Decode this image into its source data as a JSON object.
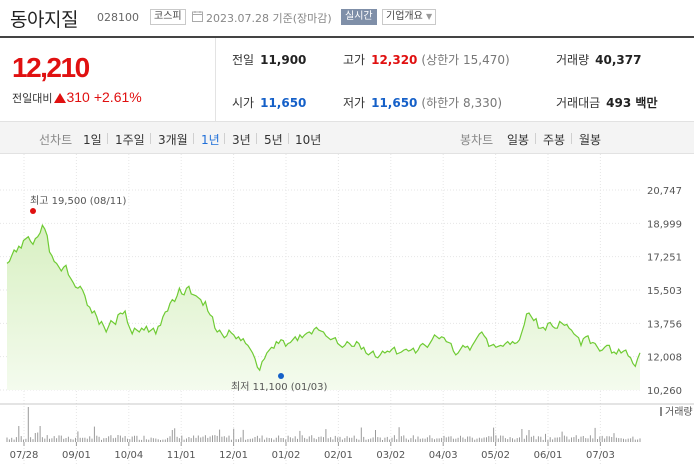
{
  "header": {
    "name": "동아지질",
    "code": "028100",
    "market": "코스피",
    "date": "2023.07.28  기준(장마감)",
    "realtime": "실시간",
    "overview": "기업개요"
  },
  "price": {
    "current": "12,210",
    "change_label": "전일대비",
    "change": "310",
    "change_pct": "+2.61%"
  },
  "stats": {
    "prev_close": {
      "label": "전일",
      "value": "11,900"
    },
    "high": {
      "label": "고가",
      "value": "12,320",
      "sub": "(상한가 15,470)"
    },
    "volume": {
      "label": "거래량",
      "value": "40,377"
    },
    "open": {
      "label": "시가",
      "value": "11,650"
    },
    "low": {
      "label": "저가",
      "value": "11,650",
      "sub": "(하한가 8,330)"
    },
    "amount": {
      "label": "거래대금",
      "value": "493 백만"
    }
  },
  "periods": {
    "line_label": "선차트",
    "line_items": [
      "1일",
      "1주일",
      "3개월",
      "1년",
      "3년",
      "5년",
      "10년"
    ],
    "selected": "1년",
    "candle_label": "봉차트",
    "candle_items": [
      "일봉",
      "주봉",
      "월봉"
    ]
  },
  "colors": {
    "line": "#6fcb34",
    "fill_top": "#d8f0c2",
    "fill_bottom": "#f4fbee",
    "red": "#e01010",
    "blue": "#1560c8"
  },
  "chart_data": {
    "type": "area",
    "ylim": [
      10260,
      20747
    ],
    "y_ticks": [
      "20,747",
      "18,999",
      "17,251",
      "15,503",
      "13,756",
      "12,008",
      "10,260"
    ],
    "x_ticks": [
      "07/28",
      "09/01",
      "10/04",
      "11/01",
      "12/01",
      "01/02",
      "02/01",
      "03/02",
      "04/03",
      "05/02",
      "06/01",
      "07/03"
    ],
    "max_label": "최고 19,500 (08/11)",
    "min_label": "최저 11,100 (01/03)",
    "max": {
      "index": 8,
      "value": 19500
    },
    "min": {
      "index": 106,
      "value": 11100
    },
    "volume_label": "거래량",
    "values": [
      16900,
      17000,
      17300,
      17600,
      17500,
      17800,
      17700,
      18100,
      18200,
      18300,
      18050,
      17900,
      18200,
      18300,
      18500,
      18900,
      18700,
      18350,
      17500,
      17300,
      17000,
      16900,
      16700,
      16500,
      16700,
      16800,
      16300,
      16100,
      15900,
      15650,
      15600,
      15700,
      15500,
      15200,
      14700,
      14600,
      14300,
      14400,
      14100,
      13700,
      13850,
      13600,
      13300,
      13600,
      13900,
      13800,
      13700,
      14200,
      14300,
      14250,
      14400,
      13800,
      13500,
      13200,
      13500,
      13400,
      13300,
      13500,
      13400,
      13600,
      13300,
      13400,
      13500,
      13200,
      13600,
      13650,
      14100,
      14350,
      14400,
      14800,
      15000,
      14900,
      15200,
      15600,
      15300,
      15250,
      15600,
      15700,
      15300,
      15250,
      15200,
      15100,
      15000,
      14700,
      14900,
      14400,
      14200,
      14100,
      13500,
      13300,
      13400,
      13200,
      13000,
      13100,
      13400,
      13250,
      13150,
      12950,
      13050,
      12850,
      12950,
      12700,
      12600,
      12400,
      12200,
      11900,
      11450,
      11300,
      11750,
      11900,
      12200,
      12350,
      12500,
      12450,
      12800,
      12700,
      12900,
      12850,
      12550,
      12700,
      12750,
      12900,
      13050,
      12850,
      13150,
      13000,
      13150,
      13250,
      13300,
      13200,
      13450,
      13550,
      13400,
      13350,
      13300,
      13100,
      13000,
      12900,
      12950,
      13000,
      12700,
      12600,
      12500,
      12600,
      12800,
      12700,
      12550,
      12550,
      12800,
      12700,
      12400,
      12500,
      12200,
      12100,
      12200,
      12300,
      12000,
      11950,
      12100,
      12300,
      12200,
      12300,
      12250,
      12400,
      12500,
      12150,
      12200,
      12250,
      12350,
      12400,
      12300,
      12350,
      12450,
      12200,
      12350,
      12600,
      12700,
      12600,
      12500,
      12700,
      12900,
      13150,
      13050,
      12950,
      13050,
      13000,
      12800,
      12750,
      12700,
      12300,
      12100,
      12200,
      12400,
      12600,
      12500,
      12550,
      12350,
      12600,
      12800,
      13000,
      13200,
      13300,
      13100,
      12950,
      12550,
      12600,
      12650,
      12500,
      12550,
      12600,
      12550,
      12700,
      12800,
      12650,
      12800,
      12700,
      12750,
      12900,
      13300,
      13700,
      14250,
      14300,
      14100,
      13900,
      14000,
      13500,
      13500,
      13550,
      13400,
      13750,
      13800,
      13600,
      13500,
      13500,
      13850,
      13750,
      13650,
      13700,
      13500,
      13400,
      13200,
      13100,
      13000,
      12600,
      12950,
      13050,
      13100,
      12700,
      12750,
      12700,
      12500,
      12300,
      12350,
      12500,
      12600,
      12600,
      12200,
      12250,
      12150,
      12400,
      12200,
      12300,
      12350,
      12050,
      11950,
      11650,
      11500,
      11900,
      12210
    ]
  }
}
